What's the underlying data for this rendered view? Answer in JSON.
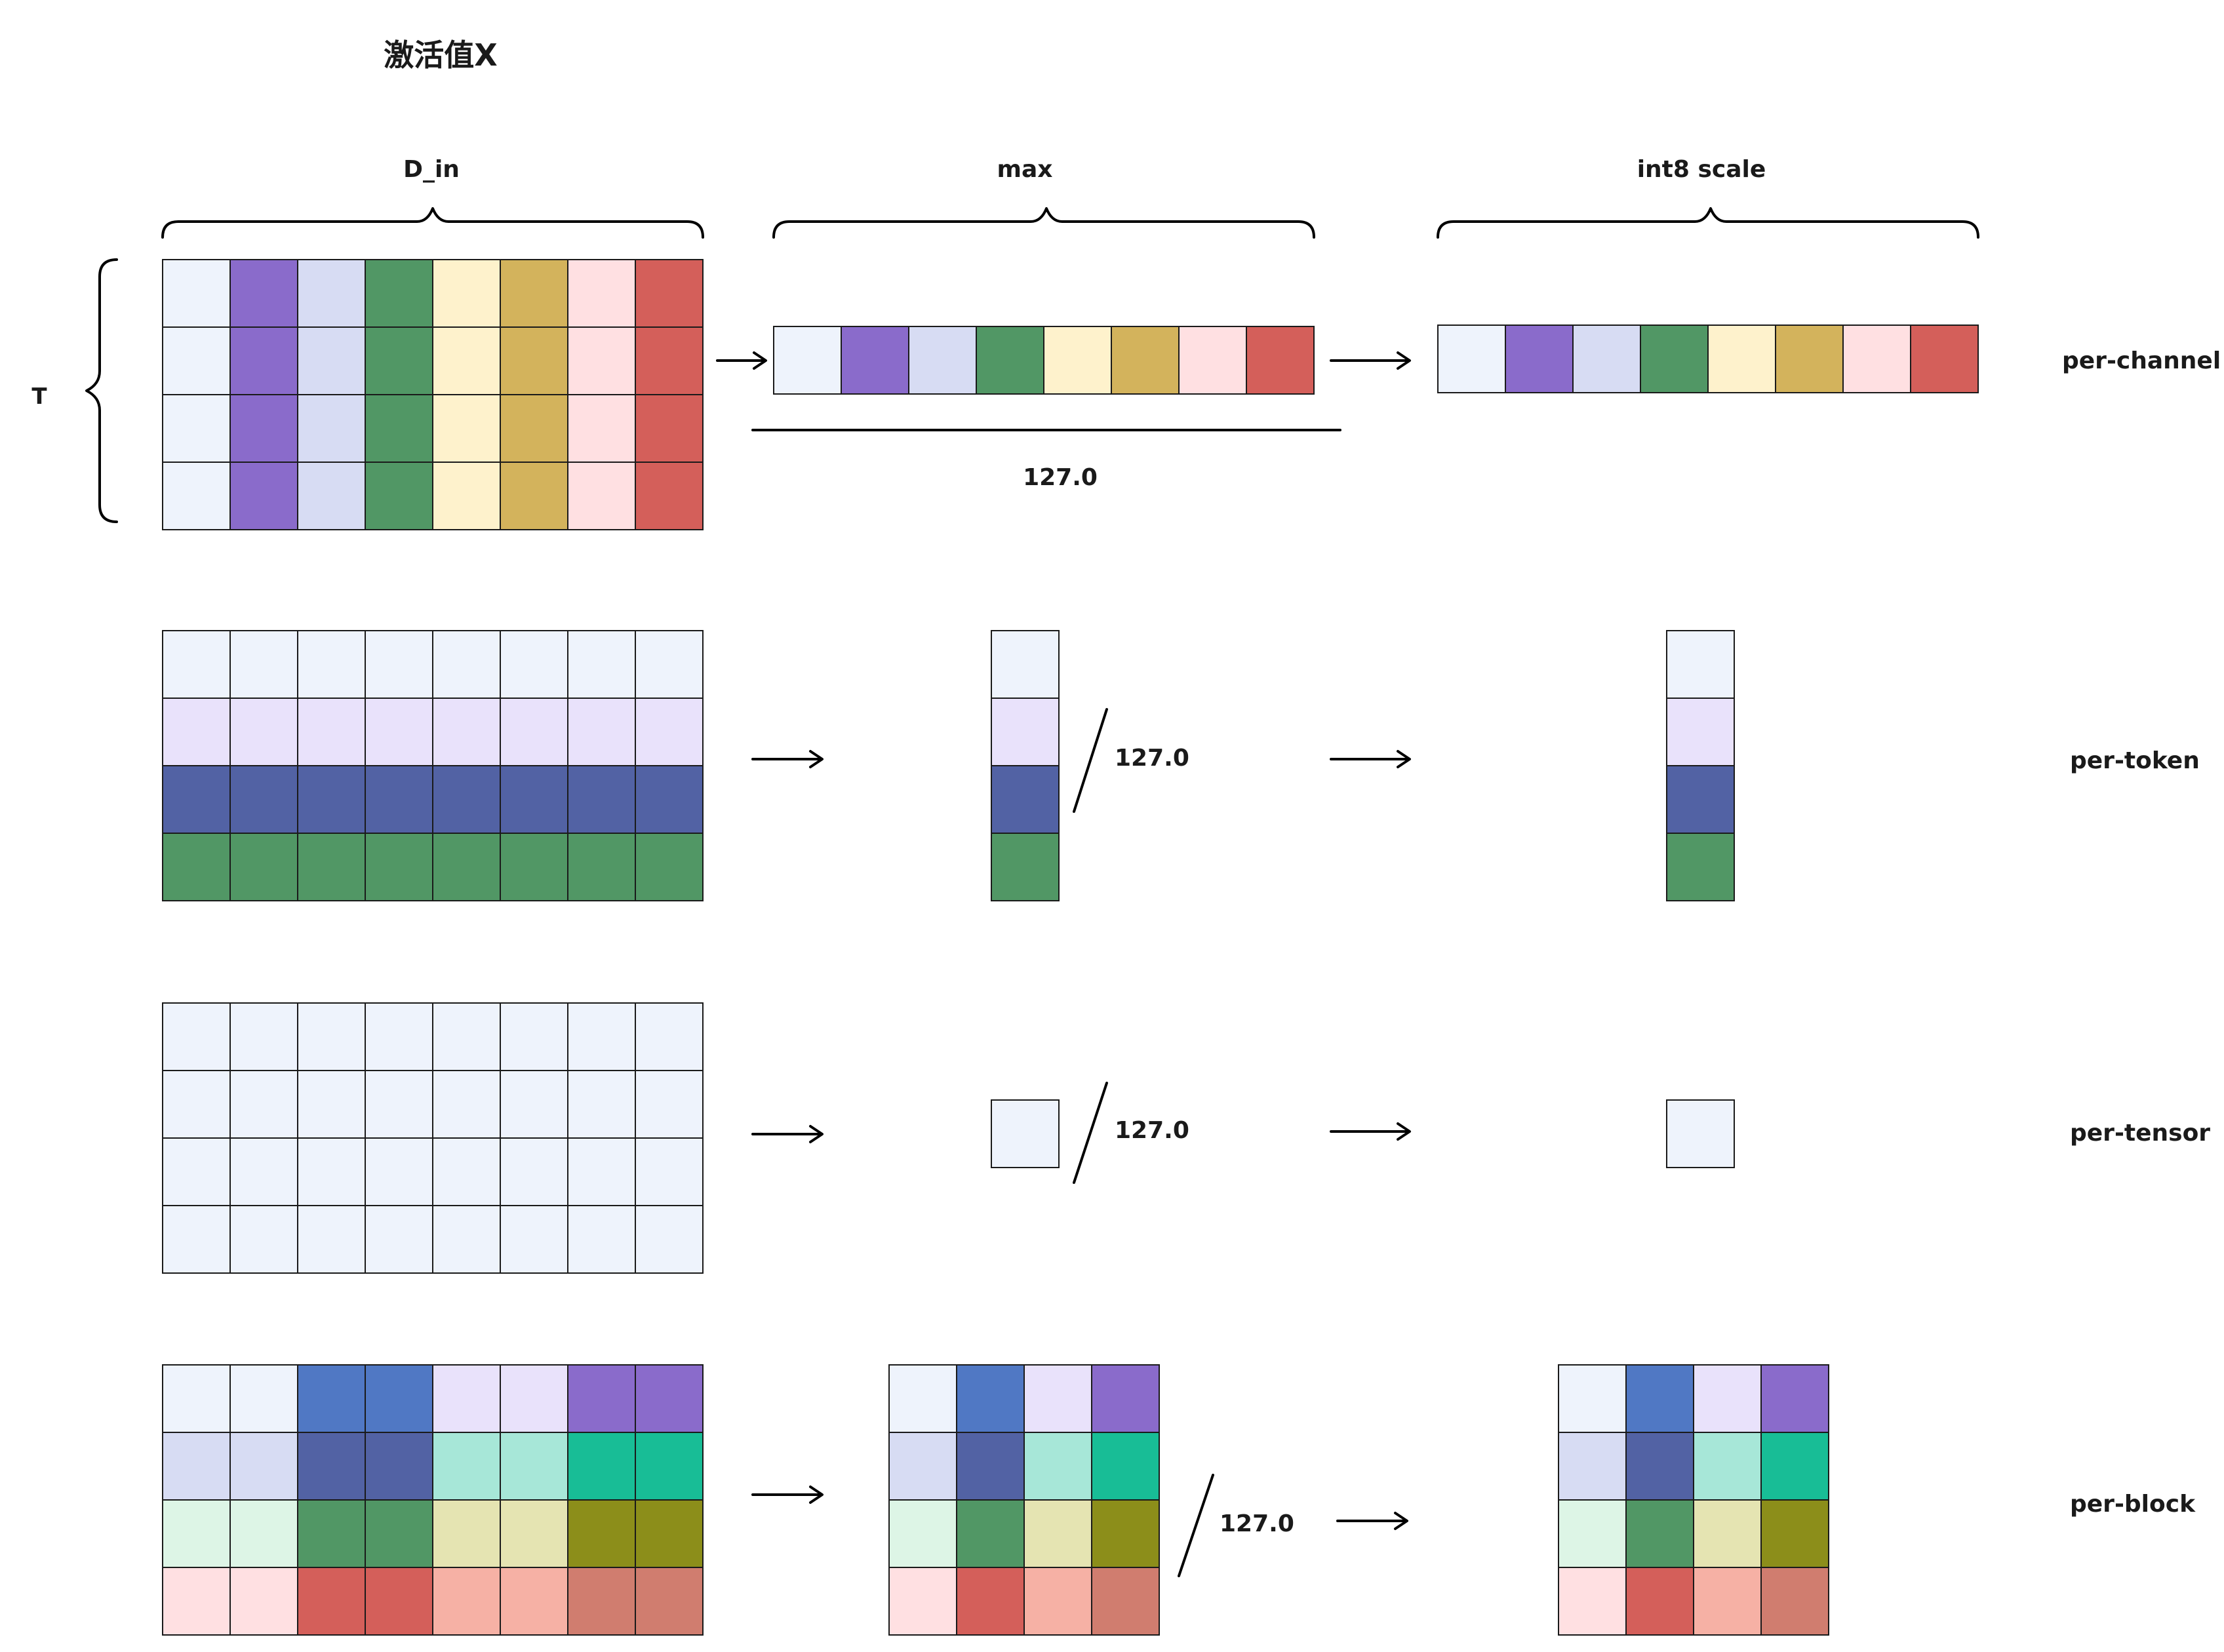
{
  "title": "激活值X",
  "labels": {
    "d_in": "D_in",
    "max": "max",
    "int8_scale": "int8 scale",
    "t": "T",
    "divisor": "127.0"
  },
  "colors": {
    "pale_blue": "#EEF3FC",
    "purple": "#8A6BCB",
    "lavender": "#D7DCF3",
    "green": "#519765",
    "cream": "#FEF2CC",
    "mustard": "#D3B35C",
    "pink": "#FFE0E2",
    "red": "#D45F5A",
    "light_lilac": "#E9E2FB",
    "slate_blue": "#5262A4",
    "cornflower": "#5078C4",
    "mint": "#A7E7D8",
    "teal": "#18BD96",
    "light_green": "#DDF5E6",
    "khaki": "#E5E4B2",
    "olive": "#8C8E1A",
    "salmon": "#F6B1A5",
    "terracotta": "#D07D6F",
    "grid": "#1a1a1a"
  },
  "rows": [
    {
      "name": "per-channel",
      "input": [
        [
          "pale_blue",
          "purple",
          "lavender",
          "green",
          "cream",
          "mustard",
          "pink",
          "red"
        ],
        [
          "pale_blue",
          "purple",
          "lavender",
          "green",
          "cream",
          "mustard",
          "pink",
          "red"
        ],
        [
          "pale_blue",
          "purple",
          "lavender",
          "green",
          "cream",
          "mustard",
          "pink",
          "red"
        ],
        [
          "pale_blue",
          "purple",
          "lavender",
          "green",
          "cream",
          "mustard",
          "pink",
          "red"
        ]
      ],
      "max": [
        [
          "pale_blue",
          "purple",
          "lavender",
          "green",
          "cream",
          "mustard",
          "pink",
          "red"
        ]
      ],
      "scale": [
        [
          "pale_blue",
          "purple",
          "lavender",
          "green",
          "cream",
          "mustard",
          "pink",
          "red"
        ]
      ]
    },
    {
      "name": "per-token",
      "input": [
        [
          "pale_blue",
          "pale_blue",
          "pale_blue",
          "pale_blue",
          "pale_blue",
          "pale_blue",
          "pale_blue",
          "pale_blue"
        ],
        [
          "light_lilac",
          "light_lilac",
          "light_lilac",
          "light_lilac",
          "light_lilac",
          "light_lilac",
          "light_lilac",
          "light_lilac"
        ],
        [
          "slate_blue",
          "slate_blue",
          "slate_blue",
          "slate_blue",
          "slate_blue",
          "slate_blue",
          "slate_blue",
          "slate_blue"
        ],
        [
          "green",
          "green",
          "green",
          "green",
          "green",
          "green",
          "green",
          "green"
        ]
      ],
      "max": [
        [
          "pale_blue"
        ],
        [
          "light_lilac"
        ],
        [
          "slate_blue"
        ],
        [
          "green"
        ]
      ],
      "scale": [
        [
          "pale_blue"
        ],
        [
          "light_lilac"
        ],
        [
          "slate_blue"
        ],
        [
          "green"
        ]
      ]
    },
    {
      "name": "per-tensor",
      "input": [
        [
          "pale_blue",
          "pale_blue",
          "pale_blue",
          "pale_blue",
          "pale_blue",
          "pale_blue",
          "pale_blue",
          "pale_blue"
        ],
        [
          "pale_blue",
          "pale_blue",
          "pale_blue",
          "pale_blue",
          "pale_blue",
          "pale_blue",
          "pale_blue",
          "pale_blue"
        ],
        [
          "pale_blue",
          "pale_blue",
          "pale_blue",
          "pale_blue",
          "pale_blue",
          "pale_blue",
          "pale_blue",
          "pale_blue"
        ],
        [
          "pale_blue",
          "pale_blue",
          "pale_blue",
          "pale_blue",
          "pale_blue",
          "pale_blue",
          "pale_blue",
          "pale_blue"
        ]
      ],
      "max": [
        [
          "pale_blue"
        ]
      ],
      "scale": [
        [
          "pale_blue"
        ]
      ]
    },
    {
      "name": "per-block",
      "input": [
        [
          "pale_blue",
          "pale_blue",
          "cornflower",
          "cornflower",
          "light_lilac",
          "light_lilac",
          "purple",
          "purple"
        ],
        [
          "lavender",
          "lavender",
          "slate_blue",
          "slate_blue",
          "mint",
          "mint",
          "teal",
          "teal"
        ],
        [
          "light_green",
          "light_green",
          "green",
          "green",
          "khaki",
          "khaki",
          "olive",
          "olive"
        ],
        [
          "pink",
          "pink",
          "red",
          "red",
          "salmon",
          "salmon",
          "terracotta",
          "terracotta"
        ]
      ],
      "max": [
        [
          "pale_blue",
          "cornflower",
          "light_lilac",
          "purple"
        ],
        [
          "lavender",
          "slate_blue",
          "mint",
          "teal"
        ],
        [
          "light_green",
          "green",
          "khaki",
          "olive"
        ],
        [
          "pink",
          "red",
          "salmon",
          "terracotta"
        ]
      ],
      "scale": [
        [
          "pale_blue",
          "cornflower",
          "light_lilac",
          "purple"
        ],
        [
          "lavender",
          "slate_blue",
          "mint",
          "teal"
        ],
        [
          "light_green",
          "green",
          "khaki",
          "olive"
        ],
        [
          "pink",
          "red",
          "salmon",
          "terracotta"
        ]
      ]
    }
  ]
}
